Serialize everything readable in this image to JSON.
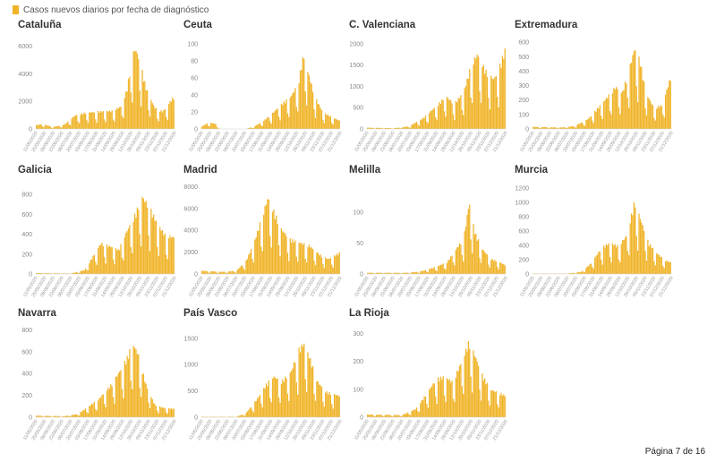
{
  "legend": {
    "label": "Casos nuevos diarios por fecha de diagnóstico",
    "color": "#f0b429"
  },
  "footer": {
    "page": "Página 7 de 16"
  },
  "chart_data": [
    {
      "type": "bar",
      "title": "Cataluña",
      "ylim": [
        0,
        6500
      ],
      "yticks": [
        0,
        2000,
        4000,
        6000
      ],
      "x_range": [
        "11/05/2020",
        "21/12/2020"
      ],
      "xticks": [
        "11/05/2020",
        "25/05/2020",
        "08/06/2020",
        "22/06/2020",
        "06/07/2020",
        "20/07/2020",
        "03/08/2020",
        "17/08/2020",
        "31/08/2020",
        "14/09/2020",
        "28/09/2020",
        "12/10/2020",
        "26/10/2020",
        "09/11/2020",
        "23/11/2020",
        "07/12/2020",
        "21/12/2020"
      ],
      "profile": [
        [
          0,
          300
        ],
        [
          0.05,
          350
        ],
        [
          0.12,
          150
        ],
        [
          0.2,
          300
        ],
        [
          0.28,
          1000
        ],
        [
          0.35,
          1200
        ],
        [
          0.45,
          1300
        ],
        [
          0.55,
          1350
        ],
        [
          0.62,
          1700
        ],
        [
          0.66,
          3000
        ],
        [
          0.7,
          5600
        ],
        [
          0.72,
          6000
        ],
        [
          0.75,
          5200
        ],
        [
          0.8,
          3000
        ],
        [
          0.86,
          1600
        ],
        [
          0.92,
          1300
        ],
        [
          0.97,
          2000
        ],
        [
          1,
          2400
        ]
      ]
    },
    {
      "type": "bar",
      "title": "Ceuta",
      "ylim": [
        0,
        105
      ],
      "yticks": [
        0,
        20,
        40,
        60,
        80,
        100
      ],
      "x_range": [
        "11/05/2020",
        "21/12/2020"
      ],
      "xticks": [
        "11/05/2020",
        "25/05/2020",
        "08/06/2020",
        "22/06/2020",
        "06/07/2020",
        "20/07/2020",
        "03/08/2020",
        "17/08/2020",
        "31/08/2020",
        "14/09/2020",
        "28/09/2020",
        "12/10/2020",
        "26/10/2020",
        "09/11/2020",
        "23/11/2020",
        "07/12/2020",
        "21/12/2020"
      ],
      "profile": [
        [
          0,
          3
        ],
        [
          0.05,
          8
        ],
        [
          0.1,
          6
        ],
        [
          0.13,
          0
        ],
        [
          0.32,
          0
        ],
        [
          0.38,
          3
        ],
        [
          0.45,
          10
        ],
        [
          0.52,
          20
        ],
        [
          0.58,
          30
        ],
        [
          0.65,
          40
        ],
        [
          0.7,
          55
        ],
        [
          0.74,
          90
        ],
        [
          0.77,
          70
        ],
        [
          0.82,
          40
        ],
        [
          0.88,
          20
        ],
        [
          0.94,
          15
        ],
        [
          1,
          10
        ]
      ]
    },
    {
      "type": "bar",
      "title": "C. Valenciana",
      "ylim": [
        0,
        2100
      ],
      "yticks": [
        0,
        500,
        1000,
        1500,
        2000
      ],
      "x_range": [
        "11/05/2020",
        "21/12/2020"
      ],
      "xticks": [
        "11/05/2020",
        "25/05/2020",
        "08/06/2020",
        "22/06/2020",
        "06/07/2020",
        "20/07/2020",
        "03/08/2020",
        "17/08/2020",
        "31/08/2020",
        "14/09/2020",
        "28/09/2020",
        "12/10/2020",
        "26/10/2020",
        "09/11/2020",
        "23/11/2020",
        "07/12/2020",
        "21/12/2020"
      ],
      "profile": [
        [
          0,
          30
        ],
        [
          0.2,
          20
        ],
        [
          0.3,
          60
        ],
        [
          0.4,
          250
        ],
        [
          0.5,
          550
        ],
        [
          0.57,
          800
        ],
        [
          0.63,
          600
        ],
        [
          0.7,
          900
        ],
        [
          0.76,
          1600
        ],
        [
          0.8,
          1800
        ],
        [
          0.86,
          1400
        ],
        [
          0.92,
          1200
        ],
        [
          0.96,
          1500
        ],
        [
          1,
          1900
        ]
      ]
    },
    {
      "type": "bar",
      "title": "Extremadura",
      "ylim": [
        0,
        620
      ],
      "yticks": [
        0,
        100,
        200,
        300,
        400,
        500,
        600
      ],
      "x_range": [
        "11/05/2020",
        "21/12/2020"
      ],
      "xticks": [
        "11/05/2020",
        "25/05/2020",
        "08/06/2020",
        "22/06/2020",
        "06/07/2020",
        "20/07/2020",
        "03/08/2020",
        "17/08/2020",
        "31/08/2020",
        "14/09/2020",
        "28/09/2020",
        "12/10/2020",
        "26/10/2020",
        "09/11/2020",
        "23/11/2020",
        "07/12/2020",
        "21/12/2020"
      ],
      "profile": [
        [
          0,
          15
        ],
        [
          0.2,
          10
        ],
        [
          0.3,
          20
        ],
        [
          0.4,
          70
        ],
        [
          0.5,
          180
        ],
        [
          0.55,
          240
        ],
        [
          0.6,
          300
        ],
        [
          0.65,
          260
        ],
        [
          0.7,
          430
        ],
        [
          0.74,
          580
        ],
        [
          0.78,
          480
        ],
        [
          0.82,
          260
        ],
        [
          0.88,
          150
        ],
        [
          0.94,
          170
        ],
        [
          1,
          370
        ]
      ]
    },
    {
      "type": "bar",
      "title": "Galicia",
      "ylim": [
        0,
        900
      ],
      "yticks": [
        0,
        200,
        400,
        600,
        800
      ],
      "x_range": [
        "11/05/2020",
        "21/12/2020"
      ],
      "xticks": [
        "11/05/2020",
        "25/05/2020",
        "08/06/2020",
        "22/06/2020",
        "06/07/2020",
        "20/07/2020",
        "03/08/2020",
        "17/08/2020",
        "31/08/2020",
        "14/09/2020",
        "28/09/2020",
        "12/10/2020",
        "26/10/2020",
        "09/11/2020",
        "23/11/2020",
        "07/12/2020",
        "21/12/2020"
      ],
      "profile": [
        [
          0,
          10
        ],
        [
          0.25,
          5
        ],
        [
          0.35,
          40
        ],
        [
          0.42,
          200
        ],
        [
          0.47,
          320
        ],
        [
          0.55,
          280
        ],
        [
          0.6,
          250
        ],
        [
          0.65,
          420
        ],
        [
          0.72,
          620
        ],
        [
          0.77,
          800
        ],
        [
          0.82,
          700
        ],
        [
          0.88,
          520
        ],
        [
          0.94,
          400
        ],
        [
          1,
          380
        ]
      ]
    },
    {
      "type": "bar",
      "title": "Madrid",
      "ylim": [
        0,
        8200
      ],
      "yticks": [
        0,
        2000,
        4000,
        6000,
        8000
      ],
      "x_range": [
        "11/05/2020",
        "21/12/2020"
      ],
      "xticks": [
        "11/05/2020",
        "25/05/2020",
        "08/06/2020",
        "22/06/2020",
        "06/07/2020",
        "20/07/2020",
        "03/08/2020",
        "17/08/2020",
        "31/08/2020",
        "14/09/2020",
        "28/09/2020",
        "12/10/2020",
        "26/10/2020",
        "09/11/2020",
        "23/11/2020",
        "07/12/2020",
        "21/12/2020"
      ],
      "profile": [
        [
          0,
          300
        ],
        [
          0.15,
          200
        ],
        [
          0.25,
          300
        ],
        [
          0.32,
          1200
        ],
        [
          0.38,
          3000
        ],
        [
          0.44,
          5500
        ],
        [
          0.48,
          7200
        ],
        [
          0.52,
          6000
        ],
        [
          0.58,
          4200
        ],
        [
          0.64,
          3300
        ],
        [
          0.7,
          3000
        ],
        [
          0.78,
          2700
        ],
        [
          0.86,
          1800
        ],
        [
          0.92,
          1400
        ],
        [
          1,
          2000
        ]
      ]
    },
    {
      "type": "bar",
      "title": "Melilla",
      "ylim": [
        0,
        145
      ],
      "yticks": [
        0,
        50,
        100
      ],
      "x_range": [
        "11/05/2020",
        "21/12/2020"
      ],
      "xticks": [
        "11/05/2020",
        "25/05/2020",
        "08/06/2020",
        "22/06/2020",
        "06/07/2020",
        "20/07/2020",
        "03/08/2020",
        "17/08/2020",
        "31/08/2020",
        "14/09/2020",
        "28/09/2020",
        "12/10/2020",
        "26/10/2020",
        "09/11/2020",
        "23/11/2020",
        "07/12/2020",
        "21/12/2020"
      ],
      "profile": [
        [
          0,
          2
        ],
        [
          0.3,
          2
        ],
        [
          0.4,
          5
        ],
        [
          0.5,
          12
        ],
        [
          0.58,
          20
        ],
        [
          0.64,
          40
        ],
        [
          0.7,
          60
        ],
        [
          0.74,
          120
        ],
        [
          0.78,
          70
        ],
        [
          0.84,
          40
        ],
        [
          0.9,
          25
        ],
        [
          0.96,
          20
        ],
        [
          1,
          15
        ]
      ]
    },
    {
      "type": "bar",
      "title": "Murcia",
      "ylim": [
        0,
        1250
      ],
      "yticks": [
        0,
        200,
        400,
        600,
        800,
        1000,
        1200
      ],
      "x_range": [
        "11/05/2020",
        "21/12/2020"
      ],
      "xticks": [
        "11/05/2020",
        "25/05/2020",
        "08/06/2020",
        "22/06/2020",
        "06/07/2020",
        "20/07/2020",
        "03/08/2020",
        "17/08/2020",
        "31/08/2020",
        "14/09/2020",
        "28/09/2020",
        "12/10/2020",
        "26/10/2020",
        "09/11/2020",
        "23/11/2020",
        "07/12/2020",
        "21/12/2020"
      ],
      "profile": [
        [
          0,
          5
        ],
        [
          0.25,
          5
        ],
        [
          0.35,
          30
        ],
        [
          0.42,
          150
        ],
        [
          0.5,
          380
        ],
        [
          0.56,
          450
        ],
        [
          0.62,
          400
        ],
        [
          0.68,
          550
        ],
        [
          0.74,
          1050
        ],
        [
          0.78,
          800
        ],
        [
          0.84,
          450
        ],
        [
          0.9,
          300
        ],
        [
          0.96,
          200
        ],
        [
          1,
          170
        ]
      ]
    },
    {
      "type": "bar",
      "title": "Navarra",
      "ylim": [
        0,
        820
      ],
      "yticks": [
        0,
        200,
        400,
        600,
        800
      ],
      "x_range": [
        "11/05/2020",
        "21/12/2020"
      ],
      "xticks": [
        "11/05/2020",
        "25/05/2020",
        "08/06/2020",
        "22/06/2020",
        "06/07/2020",
        "20/07/2020",
        "03/08/2020",
        "17/08/2020",
        "31/08/2020",
        "14/09/2020",
        "28/09/2020",
        "12/10/2020",
        "26/10/2020",
        "09/11/2020",
        "23/11/2020",
        "07/12/2020",
        "21/12/2020"
      ],
      "profile": [
        [
          0,
          15
        ],
        [
          0.2,
          10
        ],
        [
          0.3,
          30
        ],
        [
          0.38,
          100
        ],
        [
          0.46,
          180
        ],
        [
          0.54,
          300
        ],
        [
          0.6,
          420
        ],
        [
          0.66,
          560
        ],
        [
          0.7,
          700
        ],
        [
          0.74,
          600
        ],
        [
          0.8,
          300
        ],
        [
          0.86,
          120
        ],
        [
          0.92,
          90
        ],
        [
          1,
          80
        ]
      ]
    },
    {
      "type": "bar",
      "title": "País Vasco",
      "ylim": [
        0,
        1700
      ],
      "yticks": [
        0,
        500,
        1000,
        1500
      ],
      "x_range": [
        "11/05/2020",
        "21/12/2020"
      ],
      "xticks": [
        "11/05/2020",
        "25/05/2020",
        "08/06/2020",
        "22/06/2020",
        "06/07/2020",
        "20/07/2020",
        "03/08/2020",
        "17/08/2020",
        "31/08/2020",
        "14/09/2020",
        "28/09/2020",
        "12/10/2020",
        "26/10/2020",
        "09/11/2020",
        "23/11/2020",
        "07/12/2020",
        "21/12/2020"
      ],
      "profile": [
        [
          0,
          10
        ],
        [
          0.25,
          10
        ],
        [
          0.32,
          80
        ],
        [
          0.4,
          350
        ],
        [
          0.47,
          650
        ],
        [
          0.52,
          800
        ],
        [
          0.58,
          700
        ],
        [
          0.65,
          900
        ],
        [
          0.7,
          1300
        ],
        [
          0.74,
          1450
        ],
        [
          0.78,
          1200
        ],
        [
          0.84,
          700
        ],
        [
          0.9,
          500
        ],
        [
          1,
          420
        ]
      ]
    },
    {
      "type": "bar",
      "title": "La Rioja",
      "ylim": [
        0,
        320
      ],
      "yticks": [
        0,
        100,
        200,
        300
      ],
      "x_range": [
        "11/05/2020",
        "21/12/2020"
      ],
      "xticks": [
        "11/05/2020",
        "25/05/2020",
        "08/06/2020",
        "22/06/2020",
        "06/07/2020",
        "20/07/2020",
        "03/08/2020",
        "17/08/2020",
        "31/08/2020",
        "14/09/2020",
        "28/09/2020",
        "12/10/2020",
        "26/10/2020",
        "09/11/2020",
        "23/11/2020",
        "07/12/2020",
        "21/12/2020"
      ],
      "profile": [
        [
          0,
          10
        ],
        [
          0.25,
          8
        ],
        [
          0.35,
          30
        ],
        [
          0.42,
          80
        ],
        [
          0.5,
          140
        ],
        [
          0.56,
          150
        ],
        [
          0.62,
          130
        ],
        [
          0.68,
          200
        ],
        [
          0.74,
          280
        ],
        [
          0.78,
          230
        ],
        [
          0.84,
          150
        ],
        [
          0.9,
          100
        ],
        [
          0.96,
          90
        ],
        [
          1,
          80
        ]
      ]
    }
  ]
}
